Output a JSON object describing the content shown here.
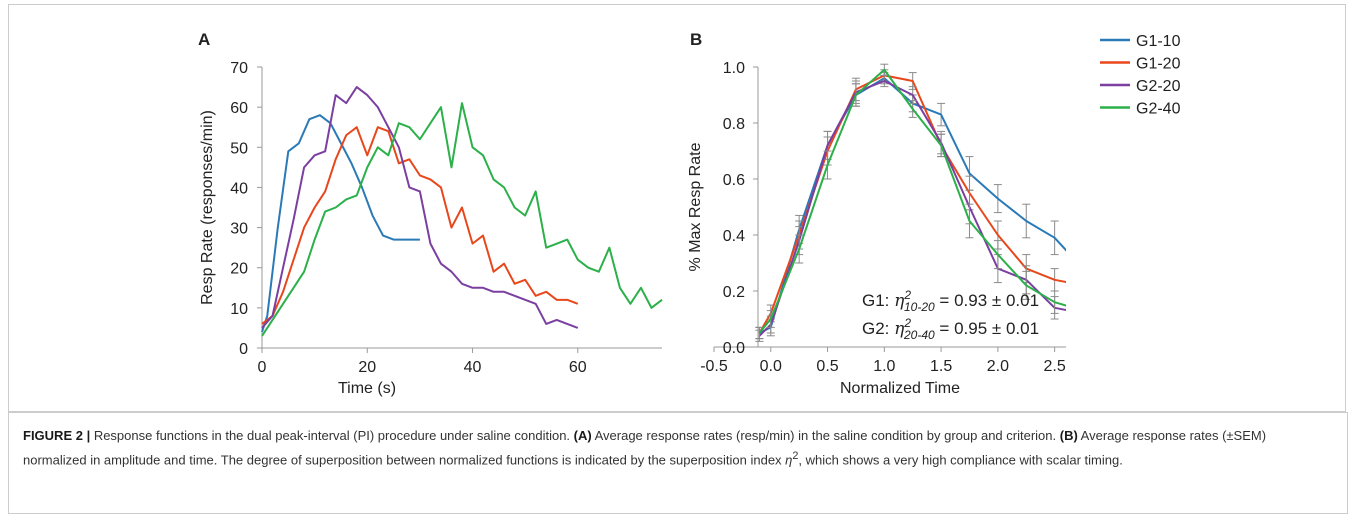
{
  "chart_data": [
    {
      "type": "line",
      "panel_label": "A",
      "x_label": "Time (s)",
      "y_label": "Resp Rate (responses/min)",
      "xlim": [
        0,
        76
      ],
      "ylim": [
        0,
        70
      ],
      "xticks": [
        0,
        20,
        40,
        60
      ],
      "yticks": [
        0,
        10,
        20,
        30,
        40,
        50,
        60,
        70
      ],
      "series": [
        {
          "color": "#2a7ab8",
          "x": [
            0,
            1,
            3,
            5,
            7,
            9,
            11,
            13,
            15,
            17,
            19,
            21,
            23,
            25,
            27,
            30
          ],
          "values": [
            4,
            8,
            30,
            49,
            51,
            57,
            58,
            56,
            51,
            46,
            40,
            33,
            28,
            27,
            27,
            27
          ]
        },
        {
          "color": "#e8471c",
          "x": [
            0,
            2,
            4,
            6,
            8,
            10,
            12,
            14,
            16,
            18,
            20,
            22,
            24,
            26,
            28,
            30,
            32,
            34,
            36,
            38,
            40,
            42,
            44,
            46,
            48,
            50,
            52,
            54,
            56,
            58,
            60
          ],
          "values": [
            6,
            8,
            14,
            22,
            30,
            35,
            39,
            47,
            53,
            55,
            48,
            55,
            54,
            46,
            47,
            43,
            42,
            40,
            30,
            35,
            26,
            28,
            19,
            21,
            16,
            17,
            13,
            14,
            12,
            12,
            11
          ]
        },
        {
          "color": "#7a3fa0",
          "x": [
            0,
            2,
            4,
            6,
            8,
            10,
            12,
            14,
            16,
            18,
            20,
            22,
            24,
            26,
            28,
            30,
            32,
            34,
            36,
            38,
            40,
            42,
            44,
            46,
            48,
            50,
            52,
            54,
            56,
            58,
            60
          ],
          "values": [
            5,
            8,
            20,
            32,
            45,
            48,
            49,
            63,
            61,
            65,
            63,
            60,
            55,
            50,
            40,
            39,
            26,
            21,
            19,
            16,
            15,
            15,
            14,
            14,
            13,
            12,
            11,
            6,
            7,
            6,
            5
          ]
        },
        {
          "color": "#2bb04a",
          "x": [
            0,
            2,
            4,
            6,
            8,
            10,
            12,
            14,
            16,
            18,
            20,
            22,
            24,
            26,
            28,
            30,
            32,
            34,
            36,
            38,
            40,
            42,
            44,
            46,
            48,
            50,
            52,
            54,
            56,
            58,
            60,
            62,
            64,
            66,
            68,
            70,
            72,
            74,
            76
          ],
          "values": [
            3,
            7,
            11,
            15,
            19,
            27,
            34,
            35,
            37,
            38,
            45,
            50,
            48,
            56,
            55,
            52,
            56,
            60,
            45,
            61,
            50,
            48,
            42,
            40,
            35,
            33,
            39,
            25,
            26,
            27,
            22,
            20,
            19,
            25,
            15,
            11,
            15,
            10,
            12
          ]
        }
      ]
    },
    {
      "type": "line",
      "panel_label": "B",
      "x_label": "Normalized Time",
      "y_label": "% Max Resp Rate",
      "xlim": [
        -0.5,
        2.6
      ],
      "ylim": [
        0,
        1.0
      ],
      "xticks": [
        -0.5,
        {
          "value": 0,
          "label": "0.0"
        },
        0.5,
        {
          "value": 1,
          "label": "1.0"
        },
        1.5,
        {
          "value": 2,
          "label": "2.0"
        },
        2.5
      ],
      "yticks": [
        {
          "value": 0,
          "label": "0.0"
        },
        0.2,
        0.4,
        0.6,
        0.8,
        {
          "value": 1,
          "label": "1.0"
        }
      ],
      "x": [
        -0.1,
        0,
        0.25,
        0.5,
        0.75,
        1,
        1.25,
        1.5,
        1.75,
        2,
        2.25,
        2.5,
        2.75
      ],
      "series": [
        {
          "name": "G1-10",
          "color": "#2a7ab8",
          "values": [
            0.05,
            0.07,
            0.42,
            0.72,
            0.9,
            0.96,
            0.87,
            0.83,
            0.62,
            0.53,
            0.45,
            0.39,
            0.28
          ],
          "errors": [
            0.02,
            0.03,
            0.05,
            0.05,
            0.04,
            0.02,
            0.03,
            0.04,
            0.06,
            0.05,
            0.06,
            0.06,
            0.06
          ]
        },
        {
          "name": "G1-20",
          "color": "#e8471c",
          "values": [
            0.05,
            0.12,
            0.4,
            0.7,
            0.92,
            0.97,
            0.95,
            0.72,
            0.55,
            0.4,
            0.28,
            0.24,
            0.22
          ],
          "errors": [
            0.02,
            0.03,
            0.05,
            0.05,
            0.04,
            0.02,
            0.03,
            0.04,
            0.06,
            0.05,
            0.05,
            0.04,
            0.04
          ]
        },
        {
          "name": "G2-20",
          "color": "#7a3fa0",
          "values": [
            0.04,
            0.08,
            0.38,
            0.72,
            0.91,
            0.95,
            0.9,
            0.73,
            0.5,
            0.28,
            0.24,
            0.14,
            0.12
          ],
          "errors": [
            0.02,
            0.03,
            0.05,
            0.05,
            0.04,
            0.02,
            0.03,
            0.04,
            0.06,
            0.05,
            0.05,
            0.04,
            0.04
          ]
        },
        {
          "name": "G2-40",
          "color": "#2bb04a",
          "values": [
            0.05,
            0.1,
            0.35,
            0.65,
            0.9,
            0.99,
            0.85,
            0.72,
            0.45,
            0.33,
            0.22,
            0.16,
            0.13
          ],
          "errors": [
            0.02,
            0.03,
            0.05,
            0.05,
            0.04,
            0.02,
            0.03,
            0.04,
            0.06,
            0.05,
            0.05,
            0.04,
            0.04
          ]
        }
      ],
      "annotations": [
        {
          "prefix": "G1: ",
          "symbol": "η",
          "sup": "2",
          "sub": "10-20",
          "rest": " = 0.93 ± 0.01"
        },
        {
          "prefix": "G2: ",
          "symbol": "η",
          "sup": "2",
          "sub": "20-40",
          "rest": " = 0.95 ± 0.01"
        }
      ]
    }
  ],
  "caption": {
    "figure_label": "FIGURE 2 |",
    "intro": " Response functions in the dual peak-interval (PI) procedure under saline condition. ",
    "a_label": "(A)",
    "a_text": " Average response rates (resp/min) in the saline condition by group and criterion. ",
    "b_label": "(B)",
    "b_text": " Average response rates (±SEM) normalized in amplitude and time. The degree of superposition between normalized functions is indicated by the superposition index ",
    "symbol": "η",
    "sup": "2",
    "tail": ", which shows a very high compliance with scalar timing."
  }
}
